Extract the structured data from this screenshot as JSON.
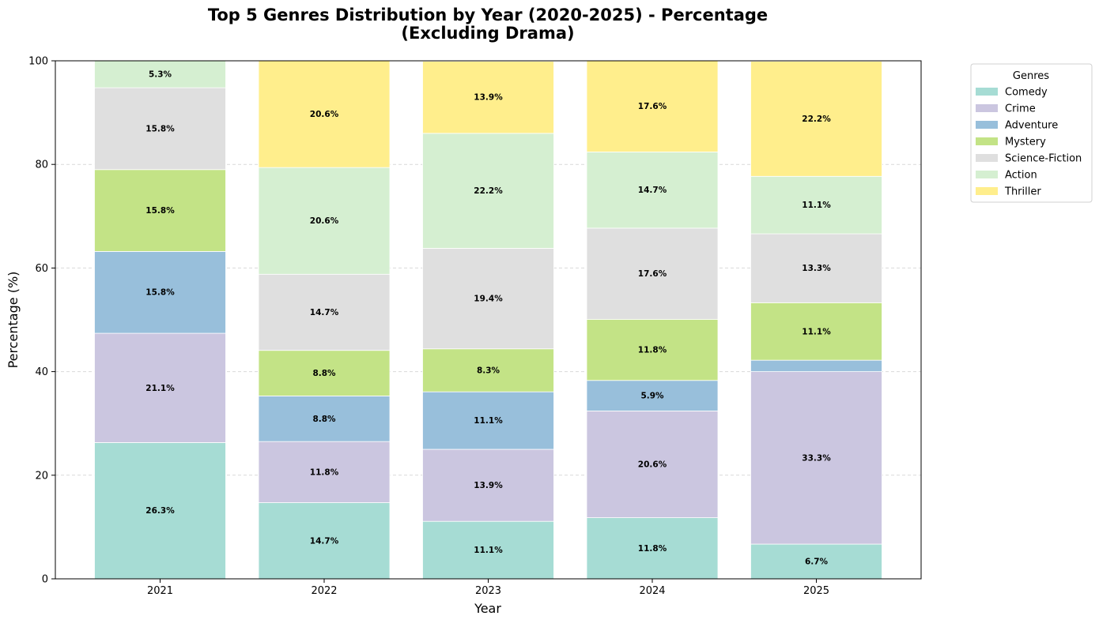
{
  "chart_data": {
    "type": "bar",
    "stacked": true,
    "title_line1": "Top 5 Genres Distribution by Year (2020-2025) - Percentage",
    "title_line2": "(Excluding Drama)",
    "xlabel": "Year",
    "ylabel": "Percentage (%)",
    "ylim": [
      0,
      100
    ],
    "yticks": [
      0,
      20,
      40,
      60,
      80,
      100
    ],
    "grid": "y-dashed",
    "legend_title": "Genres",
    "legend_position": "outside-top-right",
    "categories": [
      "2021",
      "2022",
      "2023",
      "2024",
      "2025"
    ],
    "series": [
      {
        "name": "Comedy",
        "color": "#a6dcd4",
        "values": [
          26.3,
          14.7,
          11.1,
          11.8,
          6.7
        ],
        "labels": [
          "26.3%",
          "14.7%",
          "11.1%",
          "11.8%",
          "6.7%"
        ]
      },
      {
        "name": "Crime",
        "color": "#cbc6e0",
        "values": [
          21.1,
          11.8,
          13.9,
          20.6,
          33.3
        ],
        "labels": [
          "21.1%",
          "11.8%",
          "13.9%",
          "20.6%",
          "33.3%"
        ]
      },
      {
        "name": "Adventure",
        "color": "#98bfdb",
        "values": [
          15.8,
          8.8,
          11.1,
          5.9,
          2.2
        ],
        "labels": [
          "15.8%",
          "8.8%",
          "11.1%",
          "5.9%",
          ""
        ]
      },
      {
        "name": "Mystery",
        "color": "#c3e386",
        "values": [
          15.8,
          8.8,
          8.3,
          11.8,
          11.1
        ],
        "labels": [
          "15.8%",
          "8.8%",
          "8.3%",
          "11.8%",
          "11.1%"
        ]
      },
      {
        "name": "Science-Fiction",
        "color": "#dfdfdf",
        "values": [
          15.8,
          14.7,
          19.4,
          17.6,
          13.3
        ],
        "labels": [
          "15.8%",
          "14.7%",
          "19.4%",
          "17.6%",
          "13.3%"
        ]
      },
      {
        "name": "Action",
        "color": "#d5efd1",
        "values": [
          5.3,
          20.6,
          22.2,
          14.7,
          11.1
        ],
        "labels": [
          "5.3%",
          "20.6%",
          "22.2%",
          "14.7%",
          "11.1%"
        ]
      },
      {
        "name": "Thriller",
        "color": "#ffee8c",
        "values": [
          0,
          20.6,
          13.9,
          17.6,
          22.2
        ],
        "labels": [
          "",
          "20.6%",
          "13.9%",
          "17.6%",
          "22.2%"
        ]
      }
    ]
  }
}
